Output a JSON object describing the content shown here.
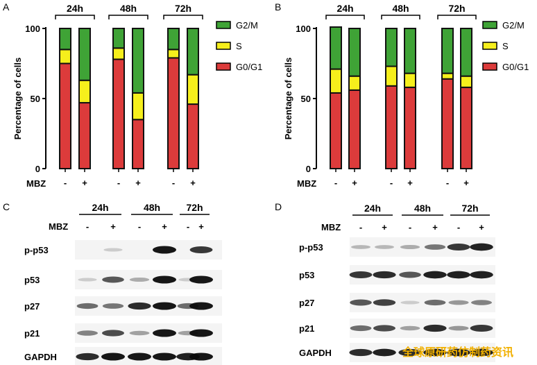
{
  "colors": {
    "g0g1": "#dc3b3b",
    "s": "#f6ef1c",
    "g2m": "#3fa336",
    "outline": "#111111"
  },
  "panels": [
    {
      "letter": "A",
      "chart_data": {
        "type": "bar",
        "stacked": true,
        "ylabel": "Percentage of cells",
        "ylim": [
          0,
          100
        ],
        "yticks": [
          0,
          50,
          100
        ],
        "groups": [
          "24h",
          "48h",
          "72h"
        ],
        "treatment_label": "MBZ",
        "treatment_marks": [
          "-",
          "+",
          "-",
          "+",
          "-",
          "+"
        ],
        "series": [
          {
            "name": "G0/G1",
            "values": [
              75,
              47,
              78,
              35,
              79,
              46
            ]
          },
          {
            "name": "S",
            "values": [
              10,
              16,
              8,
              19,
              6,
              21
            ]
          },
          {
            "name": "G2/M",
            "values": [
              15,
              37,
              14,
              46,
              15,
              33
            ]
          }
        ],
        "legend_order": [
          "G2/M",
          "S",
          "G0/G1"
        ],
        "legend": "right"
      }
    },
    {
      "letter": "B",
      "chart_data": {
        "type": "bar",
        "stacked": true,
        "ylabel": "Percentage of cells",
        "ylim": [
          0,
          100
        ],
        "yticks": [
          0,
          50,
          100
        ],
        "groups": [
          "24h",
          "48h",
          "72h"
        ],
        "treatment_label": "MBZ",
        "treatment_marks": [
          "-",
          "+",
          "-",
          "+",
          "-",
          "+"
        ],
        "series": [
          {
            "name": "G0/G1",
            "values": [
              54,
              56,
              59,
              58,
              64,
              58
            ]
          },
          {
            "name": "S",
            "values": [
              17,
              10,
              14,
              10,
              4,
              8
            ]
          },
          {
            "name": "G2/M",
            "values": [
              30,
              34,
              27,
              32,
              32,
              34
            ]
          }
        ],
        "legend_order": [
          "G2/M",
          "S",
          "G0/G1"
        ],
        "legend": "right"
      }
    }
  ],
  "blots": [
    {
      "letter": "C",
      "groups": [
        "24h",
        "48h",
        "72h"
      ],
      "treatment_label": "MBZ",
      "treatment_marks": [
        "-",
        "+",
        "-",
        "+",
        "-",
        "+"
      ],
      "proteins": [
        "p-p53",
        "p53",
        "p27",
        "p21",
        "GAPDH"
      ],
      "intensity": [
        [
          0.0,
          0.15,
          0.0,
          1.0,
          0.0,
          0.85
        ],
        [
          0.15,
          0.7,
          0.3,
          1.0,
          0.15,
          1.0
        ],
        [
          0.6,
          0.55,
          0.9,
          1.0,
          0.6,
          1.0
        ],
        [
          0.5,
          0.75,
          0.35,
          1.0,
          0.35,
          1.0
        ],
        [
          0.9,
          1.0,
          1.0,
          1.0,
          0.95,
          1.0
        ]
      ]
    },
    {
      "letter": "D",
      "groups": [
        "24h",
        "48h",
        "72h"
      ],
      "treatment_label": "MBZ",
      "treatment_marks": [
        "-",
        "+",
        "-",
        "+",
        "-",
        "+"
      ],
      "proteins": [
        "p-p53",
        "p53",
        "p27",
        "p21",
        "GAPDH"
      ],
      "intensity": [
        [
          0.25,
          0.25,
          0.3,
          0.55,
          0.85,
          0.95
        ],
        [
          0.85,
          0.9,
          0.7,
          0.95,
          0.95,
          0.95
        ],
        [
          0.7,
          0.8,
          0.15,
          0.6,
          0.4,
          0.5
        ],
        [
          0.6,
          0.75,
          0.35,
          0.9,
          0.4,
          0.85
        ],
        [
          0.9,
          0.95,
          0.9,
          0.95,
          0.95,
          0.95
        ]
      ]
    }
  ],
  "watermark": "全球原研药仿制药资讯"
}
